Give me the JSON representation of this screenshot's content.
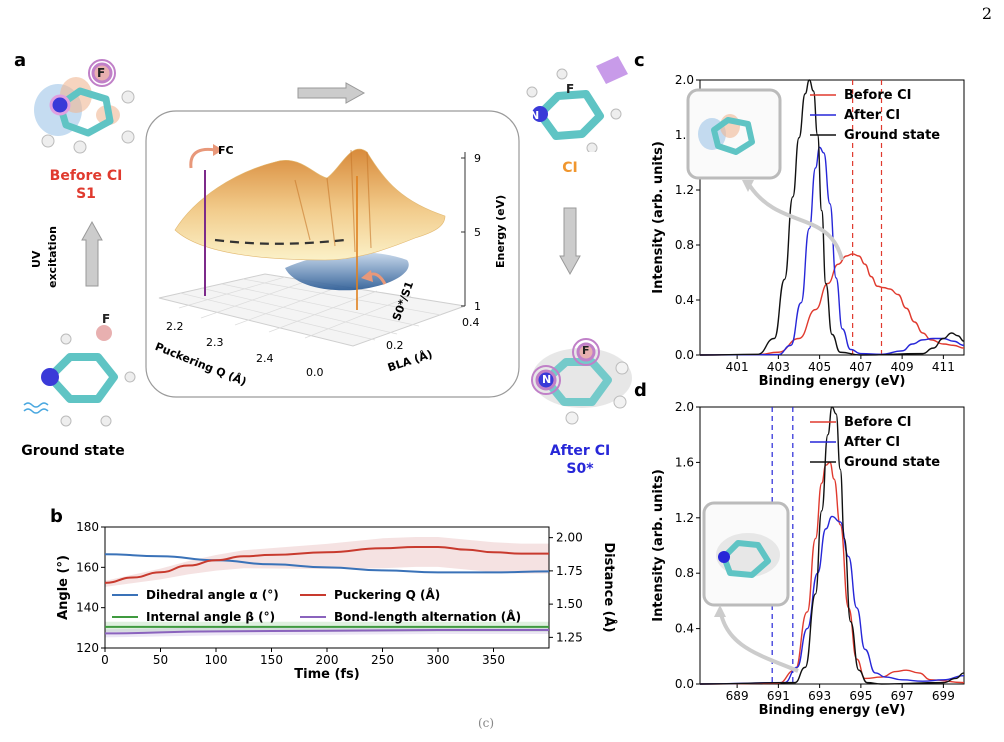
{
  "page_number": "2",
  "footer_fragment": "(c)",
  "panel_a": {
    "letter": "a",
    "before_ci": {
      "title": "Before CI",
      "state": "S1"
    },
    "ci": {
      "title": "CI"
    },
    "after_ci": {
      "title": "After CI",
      "state": "S0*"
    },
    "ground": {
      "title": "Ground state"
    },
    "uv": {
      "line1": "UV",
      "line2": "excitation"
    },
    "atoms": {
      "N": "N",
      "F": "F"
    },
    "surface": {
      "fc_label": "FC",
      "crossing_label": "S0*/S1",
      "z_axis": {
        "label": "Energy (eV)",
        "ticks": [
          "1",
          "5",
          "9"
        ]
      },
      "q_axis": {
        "label": "Puckering Q (Å)",
        "ticks": [
          "2.2",
          "2.3",
          "2.4"
        ]
      },
      "bla_axis": {
        "label": "BLA (Å)",
        "ticks": [
          "0.0",
          "0.2",
          "0.4"
        ]
      }
    }
  },
  "chart_data": [
    {
      "panel": "b",
      "type": "line",
      "xlabel": "Time (fs)",
      "ylabel": "Angle (°)",
      "y2label": "Distance (Å)",
      "xlim": [
        0,
        400
      ],
      "ylim": [
        120,
        180
      ],
      "y2lim": [
        1.17,
        2.08
      ],
      "xticks": [
        0,
        50,
        100,
        150,
        200,
        250,
        300,
        350
      ],
      "yticks": [
        120,
        140,
        160,
        180
      ],
      "y2ticks": [
        "1.25",
        "1.50",
        "1.75",
        "2.00"
      ],
      "legend": "center",
      "series": [
        {
          "name": "Dihedral angle α (°)",
          "axis": "left",
          "color": "#3a72b8",
          "x": [
            0,
            50,
            100,
            150,
            200,
            250,
            300,
            350,
            400
          ],
          "y": [
            166.5,
            165.5,
            163.5,
            161.5,
            160,
            158.5,
            157.5,
            157.5,
            158
          ]
        },
        {
          "name": "Internal angle β (°)",
          "axis": "left",
          "color": "#3f9a3f",
          "x": [
            0,
            100,
            200,
            300,
            400
          ],
          "y": [
            130.5,
            130.5,
            130.5,
            130.5,
            130.5
          ]
        },
        {
          "name": "Puckering Q (Å)",
          "axis": "right",
          "color": "#c83a2e",
          "x": [
            0,
            25,
            50,
            75,
            100,
            125,
            150,
            200,
            250,
            280,
            300,
            325,
            350,
            375,
            400
          ],
          "y": [
            1.66,
            1.7,
            1.74,
            1.79,
            1.83,
            1.86,
            1.87,
            1.89,
            1.92,
            1.93,
            1.93,
            1.91,
            1.89,
            1.88,
            1.88
          ]
        },
        {
          "name": "Bond-length alternation (Å)",
          "axis": "right",
          "color": "#8a63bd",
          "x": [
            0,
            100,
            200,
            300,
            400
          ],
          "y": [
            1.28,
            1.295,
            1.3,
            1.305,
            1.305
          ]
        }
      ]
    },
    {
      "panel": "c",
      "type": "line",
      "xlabel": "Binding energy (eV)",
      "ylabel": "Intensity (arb. units)",
      "xlim": [
        399.2,
        412
      ],
      "ylim": [
        0,
        2.0
      ],
      "xticks": [
        401,
        403,
        405,
        407,
        409,
        411
      ],
      "yticks": [
        "0.0",
        "0.4",
        "0.8",
        "1.2",
        "1.6",
        "2.0"
      ],
      "legend": "top-right",
      "vlines": [
        {
          "x": 406.6,
          "color": "#e03a2e"
        },
        {
          "x": 408.0,
          "color": "#e03a2e"
        }
      ],
      "series": [
        {
          "name": "Before CI",
          "color": "#e03a2e",
          "x": [
            399.2,
            402,
            403,
            404,
            404.8,
            405.4,
            405.9,
            406.3,
            406.6,
            406.9,
            407.2,
            407.5,
            407.8,
            408.1,
            408.4,
            408.8,
            409.2,
            409.6,
            410,
            410.4,
            411,
            411.5,
            412
          ],
          "y": [
            0,
            0.003,
            0.02,
            0.12,
            0.33,
            0.52,
            0.66,
            0.72,
            0.735,
            0.72,
            0.66,
            0.57,
            0.5,
            0.49,
            0.48,
            0.44,
            0.34,
            0.24,
            0.16,
            0.11,
            0.08,
            0.07,
            0.05
          ]
        },
        {
          "name": "After CI",
          "color": "#2727d8",
          "x": [
            399.2,
            403,
            403.6,
            404.1,
            404.5,
            404.8,
            405.0,
            405.2,
            405.5,
            405.8,
            406.1,
            406.5,
            407,
            408,
            409,
            409.5,
            410,
            410.5,
            411,
            411.5,
            412
          ],
          "y": [
            0,
            0.003,
            0.07,
            0.38,
            0.92,
            1.36,
            1.51,
            1.47,
            1.1,
            0.56,
            0.19,
            0.04,
            0.01,
            0.005,
            0.03,
            0.08,
            0.11,
            0.12,
            0.12,
            0.1,
            0.07
          ]
        },
        {
          "name": "Ground state",
          "color": "#111111",
          "x": [
            399.2,
            402,
            402.8,
            403.3,
            403.7,
            404.0,
            404.3,
            404.5,
            404.7,
            404.9,
            405.1,
            405.3,
            405.6,
            406,
            407,
            410,
            410.5,
            411,
            411.4,
            411.7,
            412
          ],
          "y": [
            0,
            0.005,
            0.12,
            0.55,
            1.15,
            1.58,
            1.9,
            2.0,
            1.92,
            1.6,
            1.05,
            0.52,
            0.15,
            0.02,
            0.0,
            0.01,
            0.05,
            0.12,
            0.16,
            0.14,
            0.1
          ]
        }
      ]
    },
    {
      "panel": "d",
      "type": "line",
      "xlabel": "Binding energy (eV)",
      "ylabel": "Intensity (arb. units)",
      "xlim": [
        687.2,
        700
      ],
      "ylim": [
        0,
        2.0
      ],
      "xticks": [
        689,
        691,
        693,
        695,
        697,
        699
      ],
      "yticks": [
        "0.0",
        "0.4",
        "0.8",
        "1.2",
        "1.6",
        "2.0"
      ],
      "legend": "top-right",
      "vlines": [
        {
          "x": 690.7,
          "color": "#2727d8"
        },
        {
          "x": 691.7,
          "color": "#2727d8"
        }
      ],
      "series": [
        {
          "name": "Before CI",
          "color": "#e03a2e",
          "x": [
            687.2,
            691,
            691.8,
            692.4,
            692.8,
            693.1,
            693.3,
            693.5,
            693.7,
            694.0,
            694.4,
            694.8,
            695.2,
            696,
            696.7,
            697.2,
            697.8,
            698.4,
            700
          ],
          "y": [
            0,
            0.005,
            0.1,
            0.52,
            1.05,
            1.45,
            1.58,
            1.6,
            1.48,
            1.15,
            0.55,
            0.18,
            0.04,
            0.05,
            0.09,
            0.1,
            0.08,
            0.03,
            0.01
          ]
        },
        {
          "name": "After CI",
          "color": "#2727d8",
          "x": [
            687.2,
            691.3,
            691.9,
            692.4,
            692.9,
            693.3,
            693.6,
            694.0,
            694.4,
            694.8,
            695.2,
            695.7,
            696.2,
            697,
            698,
            699,
            700
          ],
          "y": [
            0,
            0.01,
            0.12,
            0.4,
            0.8,
            1.12,
            1.21,
            1.17,
            0.92,
            0.55,
            0.25,
            0.08,
            0.05,
            0.03,
            0.02,
            0.03,
            0.06
          ]
        },
        {
          "name": "Ground state",
          "color": "#111111",
          "x": [
            687.2,
            691.8,
            692.3,
            692.8,
            693.1,
            693.4,
            693.6,
            693.8,
            694.0,
            694.2,
            694.5,
            694.9,
            695.3,
            696,
            699,
            699.6,
            700
          ],
          "y": [
            0,
            0.01,
            0.12,
            0.65,
            1.25,
            1.8,
            2.0,
            1.95,
            1.55,
            1.05,
            0.45,
            0.1,
            0.01,
            0.0,
            0.01,
            0.04,
            0.08
          ]
        }
      ]
    }
  ]
}
